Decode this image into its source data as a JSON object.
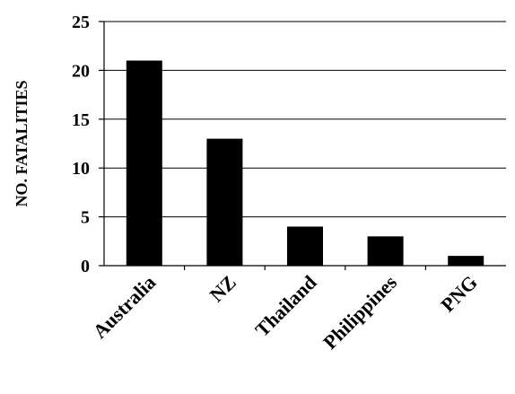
{
  "chart_data": {
    "type": "bar",
    "ylabel": "NO. FATALITIES",
    "xlabel": "",
    "categories": [
      "Australia",
      "NZ",
      "Thailand",
      "Philippines",
      "PNG"
    ],
    "values": [
      21,
      13,
      4,
      3,
      1
    ],
    "ylim": [
      0,
      25
    ],
    "yticks": [
      "0",
      "5",
      "10",
      "15",
      "20",
      "25"
    ],
    "grid": true,
    "bar_color": "#000000"
  }
}
